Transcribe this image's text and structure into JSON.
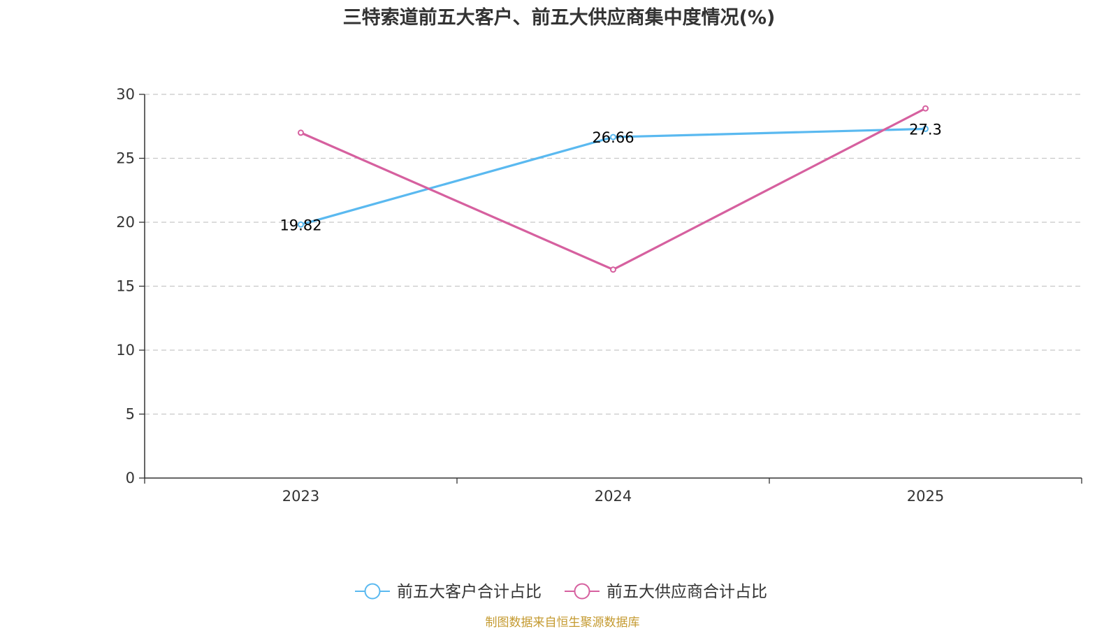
{
  "chart_data": {
    "type": "line",
    "title": "三特索道前五大客户、前五大供应商集中度情况(%)",
    "categories": [
      "2023",
      "2024",
      "2025"
    ],
    "ylim": [
      0,
      30
    ],
    "yticks": [
      0,
      5,
      10,
      15,
      20,
      25,
      30
    ],
    "grid": true,
    "legend_position": "bottom",
    "series": [
      {
        "name": "前五大客户合计占比",
        "color": "#5ab9f0",
        "values": [
          19.82,
          26.66,
          27.3
        ],
        "labels": [
          "19.82",
          "26.66",
          "27.3"
        ]
      },
      {
        "name": "前五大供应商合计占比",
        "color": "#d6609f",
        "values": [
          27.0,
          16.3,
          28.9
        ],
        "labels": []
      }
    ],
    "source": "制图数据来自恒生聚源数据库",
    "source_color": "#c49a30"
  }
}
